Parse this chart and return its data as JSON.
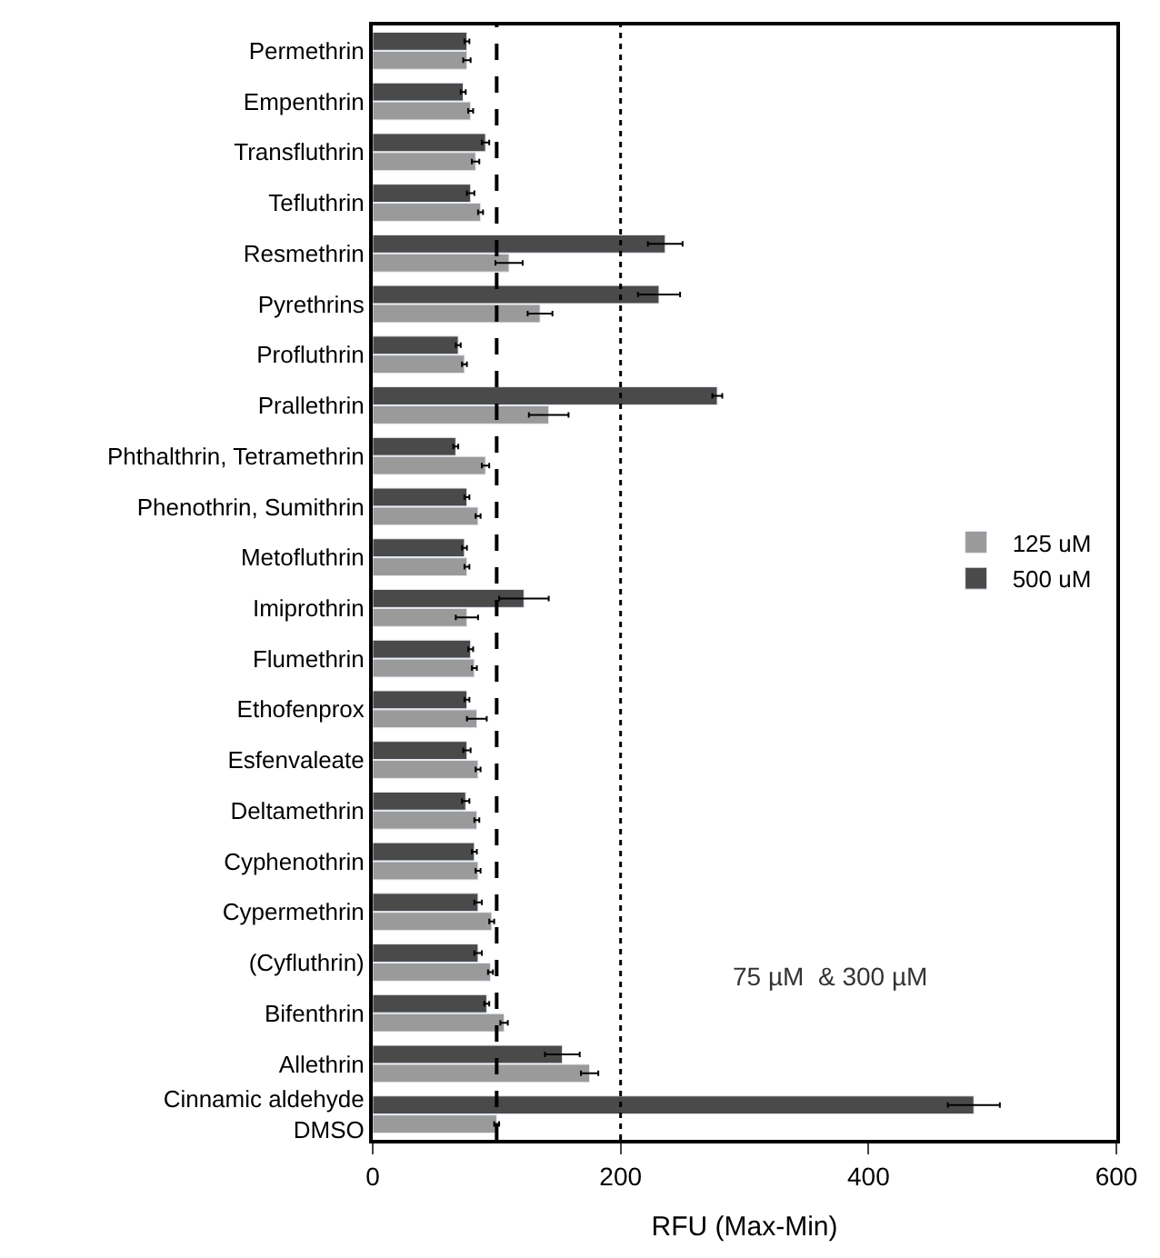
{
  "chart_data": {
    "type": "bar",
    "orientation": "horizontal",
    "categories": [
      "Permethrin",
      "Empenthrin",
      "Transfluthrin",
      "Tefluthrin",
      "Resmethrin",
      "Pyrethrins",
      "Profluthrin",
      "Prallethrin",
      "Phthalthrin, Tetramethrin",
      "Phenothrin, Sumithrin",
      "Metofluthrin",
      "Imiprothrin",
      "Flumethrin",
      "Ethofenprox",
      "Esfenvaleate",
      "Deltamethrin",
      "Cyphenothrin",
      "Cypermethrin",
      "(Cyfluthrin)",
      "Bifenthrin",
      "Allethrin",
      "Cinnamic aldehyde\nDMSO"
    ],
    "series": [
      {
        "name": "125 uM",
        "color": "#9a9a9a",
        "values": [
          76,
          79,
          83,
          87,
          110,
          135,
          74,
          142,
          91,
          85,
          76,
          76,
          82,
          84,
          85,
          84,
          85,
          96,
          95,
          106,
          175,
          100
        ],
        "errors": [
          3,
          2,
          3,
          2,
          11,
          10,
          2,
          16,
          3,
          2,
          2,
          9,
          2,
          8,
          2,
          2,
          2,
          2,
          2,
          3,
          7,
          2
        ]
      },
      {
        "name": "500 uM",
        "color": "#4a4a4a",
        "values": [
          76,
          73,
          91,
          79,
          236,
          231,
          69,
          278,
          67,
          76,
          74,
          122,
          79,
          76,
          76,
          75,
          82,
          85,
          85,
          92,
          153,
          485
        ],
        "errors": [
          2,
          2,
          3,
          3,
          14,
          17,
          2,
          4,
          2,
          2,
          2,
          20,
          2,
          2,
          3,
          3,
          2,
          3,
          3,
          2,
          14,
          21
        ]
      }
    ],
    "xlim": [
      0,
      600
    ],
    "xticks": [
      0,
      200,
      400,
      600
    ],
    "xlabel": "RFU (Max-Min)",
    "ref_lines": [
      {
        "axis": "x",
        "value": 100,
        "color": "#000000",
        "line_style": "dashed"
      },
      {
        "axis": "x",
        "value": 200,
        "color": "#000000",
        "line_style": "dotted"
      }
    ],
    "annotations": [
      "75 µM  & 300 µM"
    ],
    "legend": "right"
  }
}
